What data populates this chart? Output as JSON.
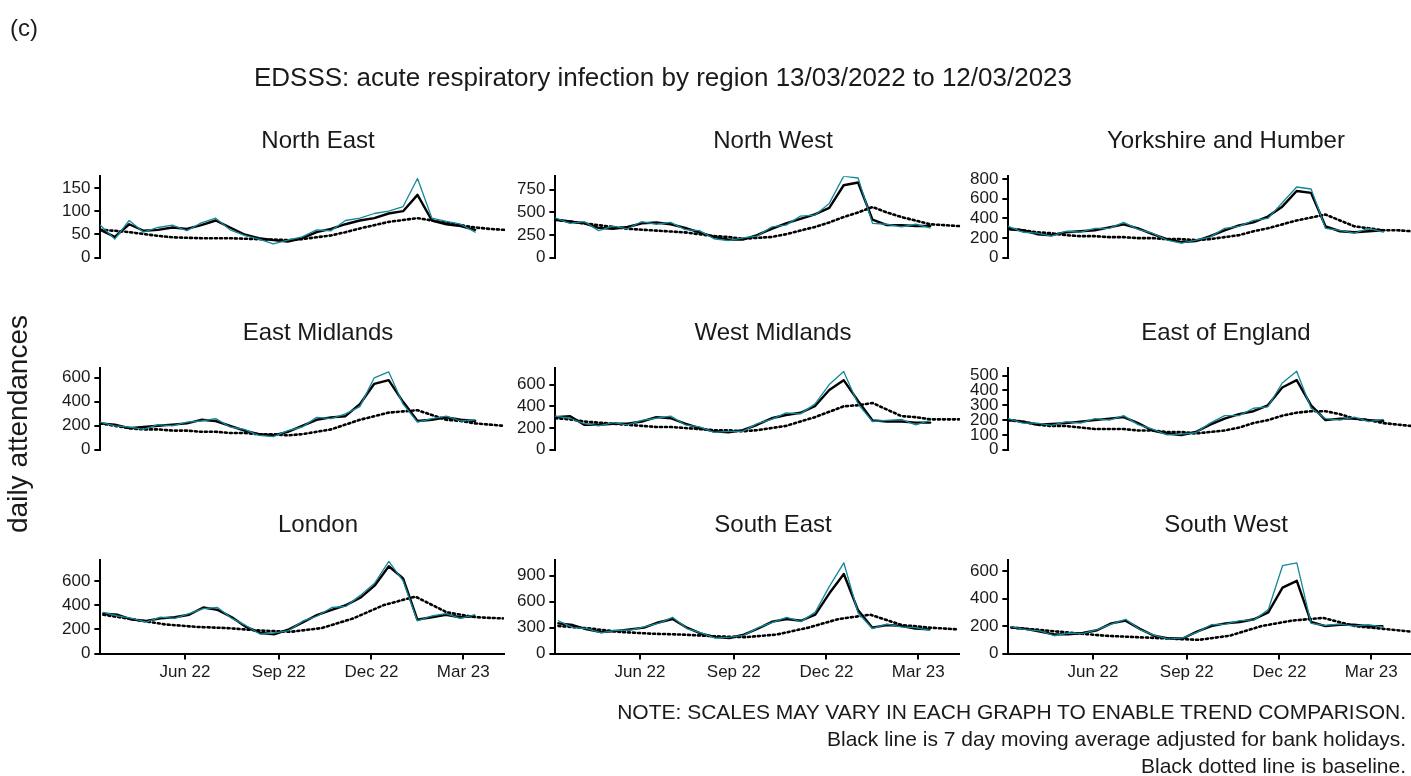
{
  "chart_data": [
    {
      "type": "other",
      "title": "EDSSS: acute respiratory infection by region 13/03/2022 to 12/03/2023",
      "annotations": [
        "(c)",
        "NOTE: SCALES MAY VARY IN EACH GRAPH TO ENABLE TREND COMPARISON.",
        "Black line is 7 day moving average adjusted for bank holidays.",
        "Black dotted line is baseline."
      ]
    },
    {
      "type": "line",
      "title": "North East",
      "categories": [
        null,
        null,
        null,
        null,
        null,
        null,
        null,
        null,
        null,
        null,
        null,
        null,
        null,
        null,
        null,
        null,
        null,
        null,
        null,
        null,
        null,
        null,
        null,
        null,
        null,
        null,
        null,
        null,
        null
      ],
      "ylim": [
        0,
        175
      ],
      "yticks": [
        0,
        50,
        100,
        150
      ],
      "tick_labels": "y",
      "grid": false,
      "legend": false,
      "marker": "none",
      "series": [
        {
          "color": "#13879a",
          "values": [
            70,
            40,
            80,
            55,
            65,
            70,
            58,
            75,
            85,
            60,
            48,
            40,
            30,
            38,
            45,
            60,
            58,
            80,
            85,
            95,
            100,
            110,
            170,
            85,
            78,
            72,
            55,
            null,
            null
          ]
        },
        {
          "color": "#000000",
          "values": [
            60,
            45,
            72,
            58,
            60,
            65,
            62,
            70,
            80,
            65,
            50,
            42,
            38,
            35,
            42,
            55,
            62,
            72,
            80,
            85,
            95,
            100,
            135,
            80,
            72,
            68,
            60,
            null,
            null
          ]
        },
        {
          "color": "#000000",
          "line_style": "dotted",
          "values": [
            60,
            58,
            55,
            51,
            47,
            44,
            43,
            42,
            42,
            42,
            41,
            40,
            39,
            38,
            40,
            44,
            48,
            55,
            63,
            70,
            77,
            81,
            85,
            80,
            75,
            70,
            65,
            62,
            60
          ]
        }
      ]
    },
    {
      "type": "line",
      "title": "North West",
      "categories": [
        null,
        null,
        null,
        null,
        null,
        null,
        null,
        null,
        null,
        null,
        null,
        null,
        null,
        null,
        null,
        null,
        null,
        null,
        null,
        null,
        null,
        null,
        null,
        null,
        null,
        null,
        null,
        null,
        null
      ],
      "ylim": [
        0,
        900
      ],
      "yticks": [
        0,
        250,
        500,
        750
      ],
      "tick_labels": "y",
      "grid": false,
      "legend": false,
      "marker": "none",
      "series": [
        {
          "color": "#13879a",
          "values": [
            440,
            380,
            400,
            300,
            350,
            320,
            400,
            370,
            390,
            310,
            300,
            210,
            190,
            220,
            240,
            340,
            360,
            460,
            470,
            600,
            900,
            880,
            380,
            370,
            340,
            370,
            330,
            null,
            null
          ]
        },
        {
          "color": "#000000",
          "values": [
            420,
            400,
            380,
            330,
            320,
            340,
            380,
            390,
            370,
            330,
            280,
            230,
            200,
            200,
            250,
            320,
            380,
            430,
            480,
            550,
            800,
            830,
            420,
            360,
            360,
            350,
            350,
            null,
            null
          ]
        },
        {
          "color": "#000000",
          "line_style": "dotted",
          "values": [
            420,
            400,
            380,
            360,
            340,
            320,
            310,
            300,
            290,
            280,
            260,
            240,
            230,
            210,
            220,
            230,
            260,
            300,
            340,
            390,
            450,
            500,
            560,
            500,
            450,
            410,
            370,
            360,
            350
          ]
        }
      ]
    },
    {
      "type": "line",
      "title": "Yorkshire and Humber",
      "categories": [
        null,
        null,
        null,
        null,
        null,
        null,
        null,
        null,
        null,
        null,
        null,
        null,
        null,
        null,
        null,
        null,
        null,
        null,
        null,
        null,
        null,
        null,
        null,
        null,
        null,
        null,
        null,
        null,
        null
      ],
      "ylim": [
        0,
        830
      ],
      "yticks": [
        0,
        200,
        400,
        600,
        800
      ],
      "tick_labels": "y",
      "grid": false,
      "legend": false,
      "marker": "none",
      "series": [
        {
          "color": "#13879a",
          "values": [
            320,
            260,
            250,
            220,
            270,
            260,
            300,
            300,
            360,
            290,
            250,
            180,
            150,
            180,
            210,
            300,
            320,
            380,
            400,
            560,
            720,
            700,
            300,
            280,
            250,
            300,
            260,
            null,
            null
          ]
        },
        {
          "color": "#000000",
          "values": [
            290,
            280,
            240,
            230,
            260,
            270,
            280,
            310,
            340,
            300,
            240,
            190,
            160,
            170,
            220,
            280,
            330,
            360,
            420,
            520,
            680,
            660,
            320,
            270,
            260,
            270,
            280,
            null,
            null
          ]
        },
        {
          "color": "#000000",
          "line_style": "dotted",
          "values": [
            300,
            280,
            260,
            250,
            230,
            220,
            220,
            210,
            210,
            200,
            200,
            190,
            190,
            180,
            190,
            210,
            230,
            270,
            300,
            340,
            380,
            410,
            440,
            380,
            320,
            300,
            280,
            280,
            270
          ]
        }
      ]
    },
    {
      "type": "line",
      "title": "East Midlands",
      "ylabel": "daily attendances",
      "categories": [
        null,
        null,
        null,
        null,
        null,
        null,
        null,
        null,
        null,
        null,
        null,
        null,
        null,
        null,
        null,
        null,
        null,
        null,
        null,
        null,
        null,
        null,
        null,
        null,
        null,
        null,
        null,
        null,
        null
      ],
      "ylim": [
        0,
        680
      ],
      "yticks": [
        0,
        200,
        400,
        600
      ],
      "tick_labels": "y",
      "grid": false,
      "legend": false,
      "marker": "none",
      "series": [
        {
          "color": "#13879a",
          "values": [
            230,
            200,
            190,
            170,
            210,
            200,
            230,
            240,
            260,
            190,
            170,
            120,
            110,
            160,
            190,
            270,
            260,
            300,
            360,
            600,
            650,
            380,
            230,
            260,
            280,
            240,
            250,
            null,
            null
          ]
        },
        {
          "color": "#000000",
          "values": [
            220,
            210,
            180,
            190,
            200,
            210,
            220,
            250,
            240,
            200,
            160,
            130,
            120,
            150,
            200,
            250,
            270,
            280,
            380,
            550,
            580,
            400,
            240,
            250,
            270,
            250,
            240,
            null,
            null
          ]
        },
        {
          "color": "#000000",
          "line_style": "dotted",
          "values": [
            220,
            200,
            180,
            170,
            170,
            160,
            160,
            150,
            150,
            140,
            140,
            130,
            130,
            120,
            130,
            150,
            170,
            210,
            250,
            280,
            310,
            320,
            330,
            290,
            250,
            240,
            220,
            210,
            200
          ]
        }
      ]
    },
    {
      "type": "line",
      "title": "West Midlands",
      "categories": [
        null,
        null,
        null,
        null,
        null,
        null,
        null,
        null,
        null,
        null,
        null,
        null,
        null,
        null,
        null,
        null,
        null,
        null,
        null,
        null,
        null,
        null,
        null,
        null,
        null,
        null,
        null,
        null,
        null
      ],
      "ylim": [
        0,
        750
      ],
      "yticks": [
        0,
        200,
        400,
        600
      ],
      "tick_labels": "y",
      "grid": false,
      "legend": false,
      "marker": "none",
      "series": [
        {
          "color": "#13879a",
          "values": [
            310,
            290,
            240,
            220,
            250,
            230,
            270,
            290,
            310,
            230,
            210,
            160,
            170,
            170,
            240,
            280,
            340,
            330,
            420,
            600,
            720,
            420,
            260,
            270,
            280,
            230,
            270,
            null,
            null
          ]
        },
        {
          "color": "#000000",
          "values": [
            300,
            310,
            230,
            230,
            240,
            240,
            260,
            300,
            290,
            240,
            200,
            170,
            160,
            180,
            230,
            290,
            320,
            340,
            400,
            550,
            640,
            450,
            270,
            260,
            260,
            250,
            250,
            null,
            null
          ]
        },
        {
          "color": "#000000",
          "line_style": "dotted",
          "values": [
            290,
            280,
            260,
            250,
            240,
            230,
            220,
            210,
            210,
            200,
            190,
            180,
            180,
            170,
            180,
            200,
            220,
            260,
            300,
            350,
            400,
            410,
            430,
            370,
            310,
            300,
            280,
            280,
            280
          ]
        }
      ]
    },
    {
      "type": "line",
      "title": "East of England",
      "categories": [
        null,
        null,
        null,
        null,
        null,
        null,
        null,
        null,
        null,
        null,
        null,
        null,
        null,
        null,
        null,
        null,
        null,
        null,
        null,
        null,
        null,
        null,
        null,
        null,
        null,
        null,
        null,
        null,
        null
      ],
      "ylim": [
        0,
        550
      ],
      "yticks": [
        0,
        100,
        200,
        300,
        400,
        500
      ],
      "tick_labels": "y",
      "grid": false,
      "legend": false,
      "marker": "none",
      "series": [
        {
          "color": "#13879a",
          "values": [
            210,
            180,
            180,
            165,
            190,
            180,
            210,
            200,
            230,
            170,
            140,
            100,
            105,
            115,
            180,
            230,
            230,
            280,
            290,
            450,
            530,
            280,
            210,
            200,
            220,
            190,
            205,
            null,
            null
          ]
        },
        {
          "color": "#000000",
          "values": [
            200,
            190,
            170,
            175,
            180,
            190,
            200,
            210,
            220,
            180,
            130,
            110,
            100,
            120,
            170,
            210,
            240,
            260,
            300,
            420,
            470,
            300,
            200,
            210,
            210,
            200,
            195,
            null,
            null
          ]
        },
        {
          "color": "#000000",
          "line_style": "dotted",
          "values": [
            200,
            190,
            170,
            160,
            160,
            150,
            140,
            140,
            140,
            130,
            130,
            120,
            120,
            110,
            120,
            130,
            150,
            180,
            200,
            230,
            250,
            260,
            260,
            240,
            210,
            200,
            180,
            170,
            160
          ]
        }
      ]
    },
    {
      "type": "line",
      "title": "London",
      "x": [
        "2022-03-13",
        "2022-03-27",
        "2022-04-10",
        "2022-04-24",
        "2022-05-08",
        "2022-05-22",
        "2022-06-05",
        "2022-06-19",
        "2022-07-03",
        "2022-07-17",
        "2022-07-31",
        "2022-08-14",
        "2022-08-28",
        "2022-09-11",
        "2022-09-25",
        "2022-10-09",
        "2022-10-23",
        "2022-11-06",
        "2022-11-20",
        "2022-12-04",
        "2022-12-18",
        "2023-01-01",
        "2023-01-15",
        "2023-01-29",
        "2023-02-12",
        "2023-02-26",
        "2023-03-12"
      ],
      "xlim": [
        "2022-03-10",
        "2023-04-10"
      ],
      "xticks": [
        {
          "value": "2022-06-01",
          "label": "Jun 22"
        },
        {
          "value": "2022-09-01",
          "label": "Sep 22"
        },
        {
          "value": "2022-12-01",
          "label": "Dec 22"
        },
        {
          "value": "2023-03-01",
          "label": "Mar 23"
        }
      ],
      "ylim": [
        0,
        770
      ],
      "yticks": [
        0,
        200,
        400,
        600
      ],
      "grid": false,
      "legend": false,
      "marker": "none",
      "series": [
        {
          "color": "#13879a",
          "values": [
            340,
            310,
            290,
            260,
            300,
            290,
            330,
            370,
            380,
            290,
            230,
            160,
            170,
            190,
            270,
            310,
            380,
            390,
            480,
            580,
            760,
            600,
            270,
            310,
            330,
            290,
            320
          ]
        },
        {
          "color": "#000000",
          "values": [
            330,
            320,
            280,
            270,
            290,
            300,
            320,
            380,
            360,
            300,
            220,
            170,
            160,
            200,
            260,
            320,
            360,
            400,
            460,
            560,
            720,
            620,
            280,
            300,
            320,
            300,
            310
          ]
        },
        {
          "color": "#000000",
          "line_style": "dotted",
          "x": [
            "2022-03-13",
            "2022-04-13",
            "2022-05-13",
            "2022-06-13",
            "2022-07-13",
            "2022-08-13",
            "2022-09-13",
            "2022-10-13",
            "2022-11-13",
            "2022-12-13",
            "2023-01-13",
            "2023-02-13",
            "2023-03-13",
            "2023-04-09"
          ],
          "values": [
            320,
            280,
            240,
            220,
            210,
            190,
            180,
            210,
            290,
            400,
            470,
            340,
            300,
            290
          ]
        }
      ]
    },
    {
      "type": "line",
      "title": "South East",
      "x": [
        "2022-03-13",
        "2022-03-27",
        "2022-04-10",
        "2022-04-24",
        "2022-05-08",
        "2022-05-22",
        "2022-06-05",
        "2022-06-19",
        "2022-07-03",
        "2022-07-17",
        "2022-07-31",
        "2022-08-14",
        "2022-08-28",
        "2022-09-11",
        "2022-09-25",
        "2022-10-09",
        "2022-10-23",
        "2022-11-06",
        "2022-11-20",
        "2022-12-04",
        "2022-12-18",
        "2023-01-01",
        "2023-01-15",
        "2023-01-29",
        "2023-02-12",
        "2023-02-26",
        "2023-03-12"
      ],
      "xlim": [
        "2022-03-10",
        "2023-04-10"
      ],
      "xticks": [
        {
          "value": "2022-06-01",
          "label": "Jun 22"
        },
        {
          "value": "2022-09-01",
          "label": "Sep 22"
        },
        {
          "value": "2022-12-01",
          "label": "Dec 22"
        },
        {
          "value": "2023-03-01",
          "label": "Mar 23"
        }
      ],
      "ylim": [
        0,
        1080
      ],
      "yticks": [
        0,
        300,
        600,
        900
      ],
      "grid": false,
      "legend": false,
      "marker": "none",
      "series": [
        {
          "color": "#13879a",
          "values": [
            380,
            300,
            290,
            240,
            270,
            270,
            310,
            350,
            420,
            290,
            240,
            180,
            190,
            210,
            300,
            360,
            420,
            370,
            480,
            780,
            1050,
            470,
            290,
            340,
            310,
            300,
            270
          ]
        },
        {
          "color": "#000000",
          "values": [
            350,
            330,
            280,
            250,
            260,
            280,
            300,
            360,
            400,
            300,
            230,
            190,
            180,
            220,
            290,
            370,
            400,
            380,
            450,
            700,
            920,
            500,
            300,
            330,
            320,
            290,
            280
          ]
        },
        {
          "color": "#000000",
          "line_style": "dotted",
          "x": [
            "2022-03-13",
            "2022-04-13",
            "2022-05-13",
            "2022-06-13",
            "2022-07-13",
            "2022-08-13",
            "2022-09-13",
            "2022-10-13",
            "2022-11-13",
            "2022-12-13",
            "2023-01-13",
            "2023-02-13",
            "2023-03-13",
            "2023-04-09"
          ],
          "values": [
            320,
            290,
            250,
            230,
            220,
            200,
            190,
            220,
            300,
            400,
            450,
            330,
            300,
            280
          ]
        }
      ]
    },
    {
      "type": "line",
      "title": "South West",
      "x": [
        "2022-03-13",
        "2022-03-27",
        "2022-04-10",
        "2022-04-24",
        "2022-05-08",
        "2022-05-22",
        "2022-06-05",
        "2022-06-19",
        "2022-07-03",
        "2022-07-17",
        "2022-07-31",
        "2022-08-14",
        "2022-08-28",
        "2022-09-11",
        "2022-09-25",
        "2022-10-09",
        "2022-10-23",
        "2022-11-06",
        "2022-11-20",
        "2022-12-04",
        "2022-12-18",
        "2023-01-01",
        "2023-01-15",
        "2023-01-29",
        "2023-02-12",
        "2023-02-26",
        "2023-03-12"
      ],
      "xlim": [
        "2022-03-10",
        "2023-04-10"
      ],
      "xticks": [
        {
          "value": "2022-06-01",
          "label": "Jun 22"
        },
        {
          "value": "2022-09-01",
          "label": "Sep 22"
        },
        {
          "value": "2022-12-01",
          "label": "Dec 22"
        },
        {
          "value": "2023-03-01",
          "label": "Mar 23"
        }
      ],
      "ylim": [
        0,
        680
      ],
      "yticks": [
        0,
        200,
        400,
        600
      ],
      "grid": false,
      "legend": false,
      "marker": "none",
      "series": [
        {
          "color": "#13879a",
          "values": [
            195,
            175,
            165,
            130,
            150,
            145,
            175,
            215,
            250,
            175,
            135,
            105,
            115,
            155,
            210,
            215,
            240,
            245,
            320,
            640,
            660,
            220,
            205,
            215,
            200,
            210,
            195
          ]
        },
        {
          "color": "#000000",
          "values": [
            190,
            180,
            160,
            140,
            140,
            150,
            170,
            220,
            240,
            180,
            130,
            110,
            110,
            160,
            200,
            220,
            230,
            250,
            300,
            480,
            530,
            230,
            200,
            210,
            210,
            200,
            200
          ]
        },
        {
          "color": "#000000",
          "line_style": "dotted",
          "x": [
            "2022-03-13",
            "2022-04-13",
            "2022-05-13",
            "2022-06-13",
            "2022-07-13",
            "2022-08-13",
            "2022-09-13",
            "2022-10-13",
            "2022-11-13",
            "2022-12-13",
            "2023-01-13",
            "2023-02-13",
            "2023-03-13",
            "2023-04-09"
          ],
          "values": [
            190,
            170,
            150,
            130,
            120,
            110,
            100,
            130,
            200,
            240,
            260,
            200,
            180,
            160
          ]
        }
      ]
    }
  ]
}
